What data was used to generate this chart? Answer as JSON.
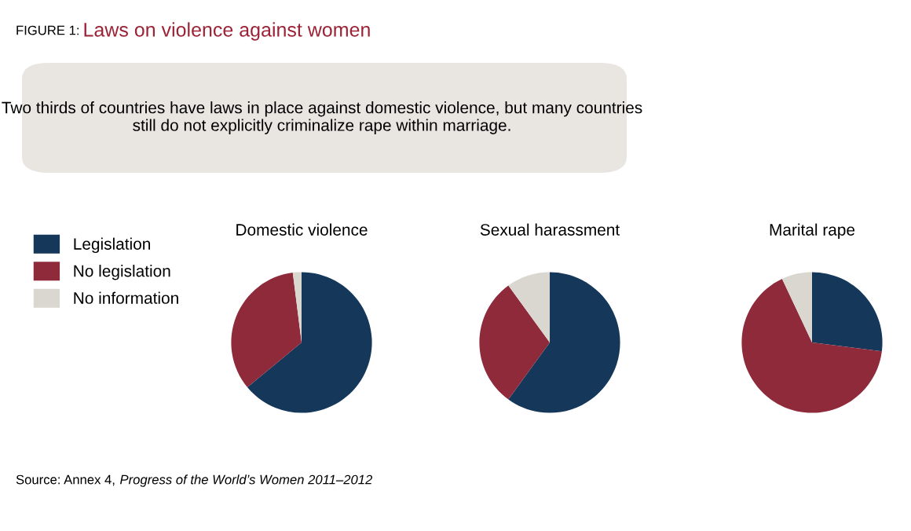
{
  "chart_data": [
    {
      "type": "pie",
      "title": "Domestic violence",
      "categories": [
        "Legislation",
        "No legislation",
        "No information"
      ],
      "values": [
        64,
        34,
        2
      ],
      "colors": [
        "#14375a",
        "#8e2a3a",
        "#dad6d0"
      ],
      "legend": "left",
      "annotations": [
        "FIGURE 1:",
        "Laws on violence against women",
        "Two thirds of countries have laws in place against domestic violence, but many countries still do not explicitly criminalize rape within marriage.",
        "Source: Annex 4,",
        "Progress of the World’s Women 2011–2012"
      ]
    },
    {
      "type": "pie",
      "title": "Sexual harassment",
      "categories": [
        null,
        null,
        null
      ],
      "values": [
        60,
        30,
        10
      ],
      "colors": [
        "#14375a",
        "#8e2a3a",
        "#dad6d0"
      ]
    },
    {
      "type": "pie",
      "title": "Marital rape",
      "categories": [
        null,
        null,
        null
      ],
      "values": [
        27,
        66,
        7
      ],
      "colors": [
        "#14375a",
        "#8e2a3a",
        "#dad6d0"
      ]
    }
  ]
}
